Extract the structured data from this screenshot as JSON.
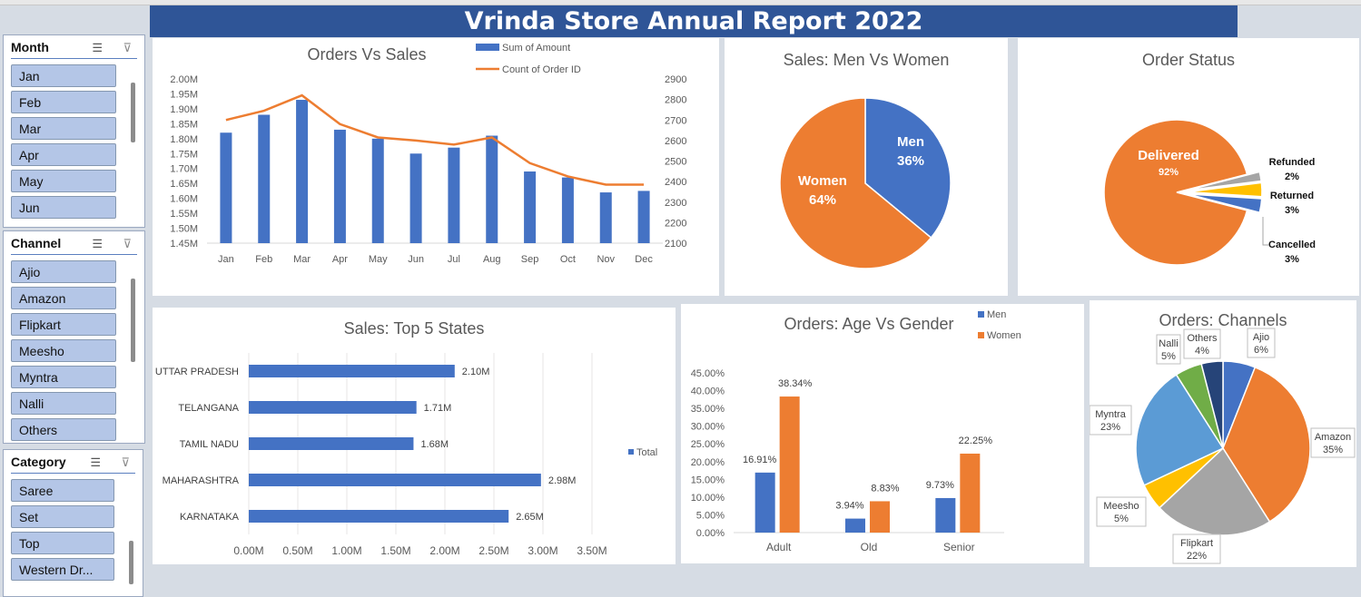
{
  "report_title": "Vrinda Store Annual Report 2022",
  "slicers": {
    "month": {
      "title": "Month",
      "items": [
        "Jan",
        "Feb",
        "Mar",
        "Apr",
        "May",
        "Jun"
      ]
    },
    "channel": {
      "title": "Channel",
      "items": [
        "Ajio",
        "Amazon",
        "Flipkart",
        "Meesho",
        "Myntra",
        "Nalli",
        "Others"
      ]
    },
    "category": {
      "title": "Category",
      "items": [
        "Saree",
        "Set",
        "Top",
        "Western Dr..."
      ]
    },
    "icons": {
      "multiselect": "multi-select-icon",
      "clear": "clear-filter-icon"
    }
  },
  "colors": {
    "blue": "#4472c4",
    "orange": "#ed7d31",
    "gray": "#a5a5a5",
    "yellow": "#ffc000",
    "lightblue": "#5b9bd5",
    "green": "#70ad47",
    "navy": "#264478",
    "banner": "#2f5597"
  },
  "chart_data": [
    {
      "id": "orders-vs-sales",
      "type": "bar",
      "title": "Orders Vs Sales",
      "categories": [
        "Jan",
        "Feb",
        "Mar",
        "Apr",
        "May",
        "Jun",
        "Jul",
        "Aug",
        "Sep",
        "Oct",
        "Nov",
        "Dec"
      ],
      "series": [
        {
          "name": "Sum of Amount",
          "type": "bar",
          "axis": "left",
          "values": [
            1.82,
            1.88,
            1.93,
            1.83,
            1.8,
            1.75,
            1.77,
            1.81,
            1.69,
            1.67,
            1.62,
            1.625
          ]
        },
        {
          "name": "Count of Order ID",
          "type": "line",
          "axis": "right",
          "values": [
            2700,
            2745,
            2820,
            2680,
            2615,
            2600,
            2580,
            2615,
            2490,
            2425,
            2385,
            2385
          ]
        }
      ],
      "yticks": [
        "2.00M",
        "1.95M",
        "1.90M",
        "1.85M",
        "1.80M",
        "1.75M",
        "1.70M",
        "1.65M",
        "1.60M",
        "1.55M",
        "1.50M",
        "1.45M"
      ],
      "y2ticks": [
        "2900",
        "2800",
        "2700",
        "2600",
        "2500",
        "2400",
        "2300",
        "2200",
        "2100"
      ],
      "ylim": [
        1.45,
        2.0
      ],
      "y2lim": [
        2100,
        2900
      ]
    },
    {
      "id": "sales-men-women",
      "type": "pie",
      "title": "Sales: Men Vs Women",
      "labels": [
        "Men",
        "Women"
      ],
      "values": [
        36,
        64
      ],
      "value_labels": [
        "36%",
        "64%"
      ]
    },
    {
      "id": "order-status",
      "type": "pie",
      "title": "Order Status",
      "labels": [
        "Delivered",
        "Refunded",
        "Returned",
        "Cancelled"
      ],
      "values": [
        92,
        2,
        3,
        3
      ],
      "value_labels": [
        "92%",
        "2%",
        "3%",
        "3%"
      ]
    },
    {
      "id": "top-5-states",
      "type": "bar",
      "orientation": "horizontal",
      "title": "Sales: Top 5 States",
      "categories": [
        "UTTAR PRADESH",
        "TELANGANA",
        "TAMIL NADU",
        "MAHARASHTRA",
        "KARNATAKA"
      ],
      "values": [
        2.1,
        1.71,
        1.68,
        2.98,
        2.65
      ],
      "value_labels": [
        "2.10M",
        "1.71M",
        "1.68M",
        "2.98M",
        "2.65M"
      ],
      "xticks": [
        "0.00M",
        "0.50M",
        "1.00M",
        "1.50M",
        "2.00M",
        "2.50M",
        "3.00M",
        "3.50M"
      ],
      "xlim": [
        0,
        3.5
      ],
      "legend": "Total"
    },
    {
      "id": "age-vs-gender",
      "type": "bar",
      "title": "Orders: Age Vs Gender",
      "categories": [
        "Adult",
        "Old",
        "Senior"
      ],
      "series": [
        {
          "name": "Men",
          "values": [
            16.91,
            3.94,
            9.73
          ],
          "value_labels": [
            "16.91%",
            "3.94%",
            "9.73%"
          ]
        },
        {
          "name": "Women",
          "values": [
            38.34,
            8.83,
            22.25
          ],
          "value_labels": [
            "38.34%",
            "8.83%",
            "22.25%"
          ]
        }
      ],
      "yticks": [
        "45.00%",
        "40.00%",
        "35.00%",
        "30.00%",
        "25.00%",
        "20.00%",
        "15.00%",
        "10.00%",
        "5.00%",
        "0.00%"
      ],
      "ylim": [
        0,
        45
      ]
    },
    {
      "id": "orders-channels",
      "type": "pie",
      "title": "Orders: Channels",
      "labels": [
        "Ajio",
        "Amazon",
        "Flipkart",
        "Meesho",
        "Myntra",
        "Nalli",
        "Others"
      ],
      "values": [
        6,
        35,
        22,
        5,
        23,
        5,
        4
      ],
      "value_labels": [
        "6%",
        "35%",
        "22%",
        "5%",
        "23%",
        "5%",
        "4%"
      ]
    }
  ]
}
